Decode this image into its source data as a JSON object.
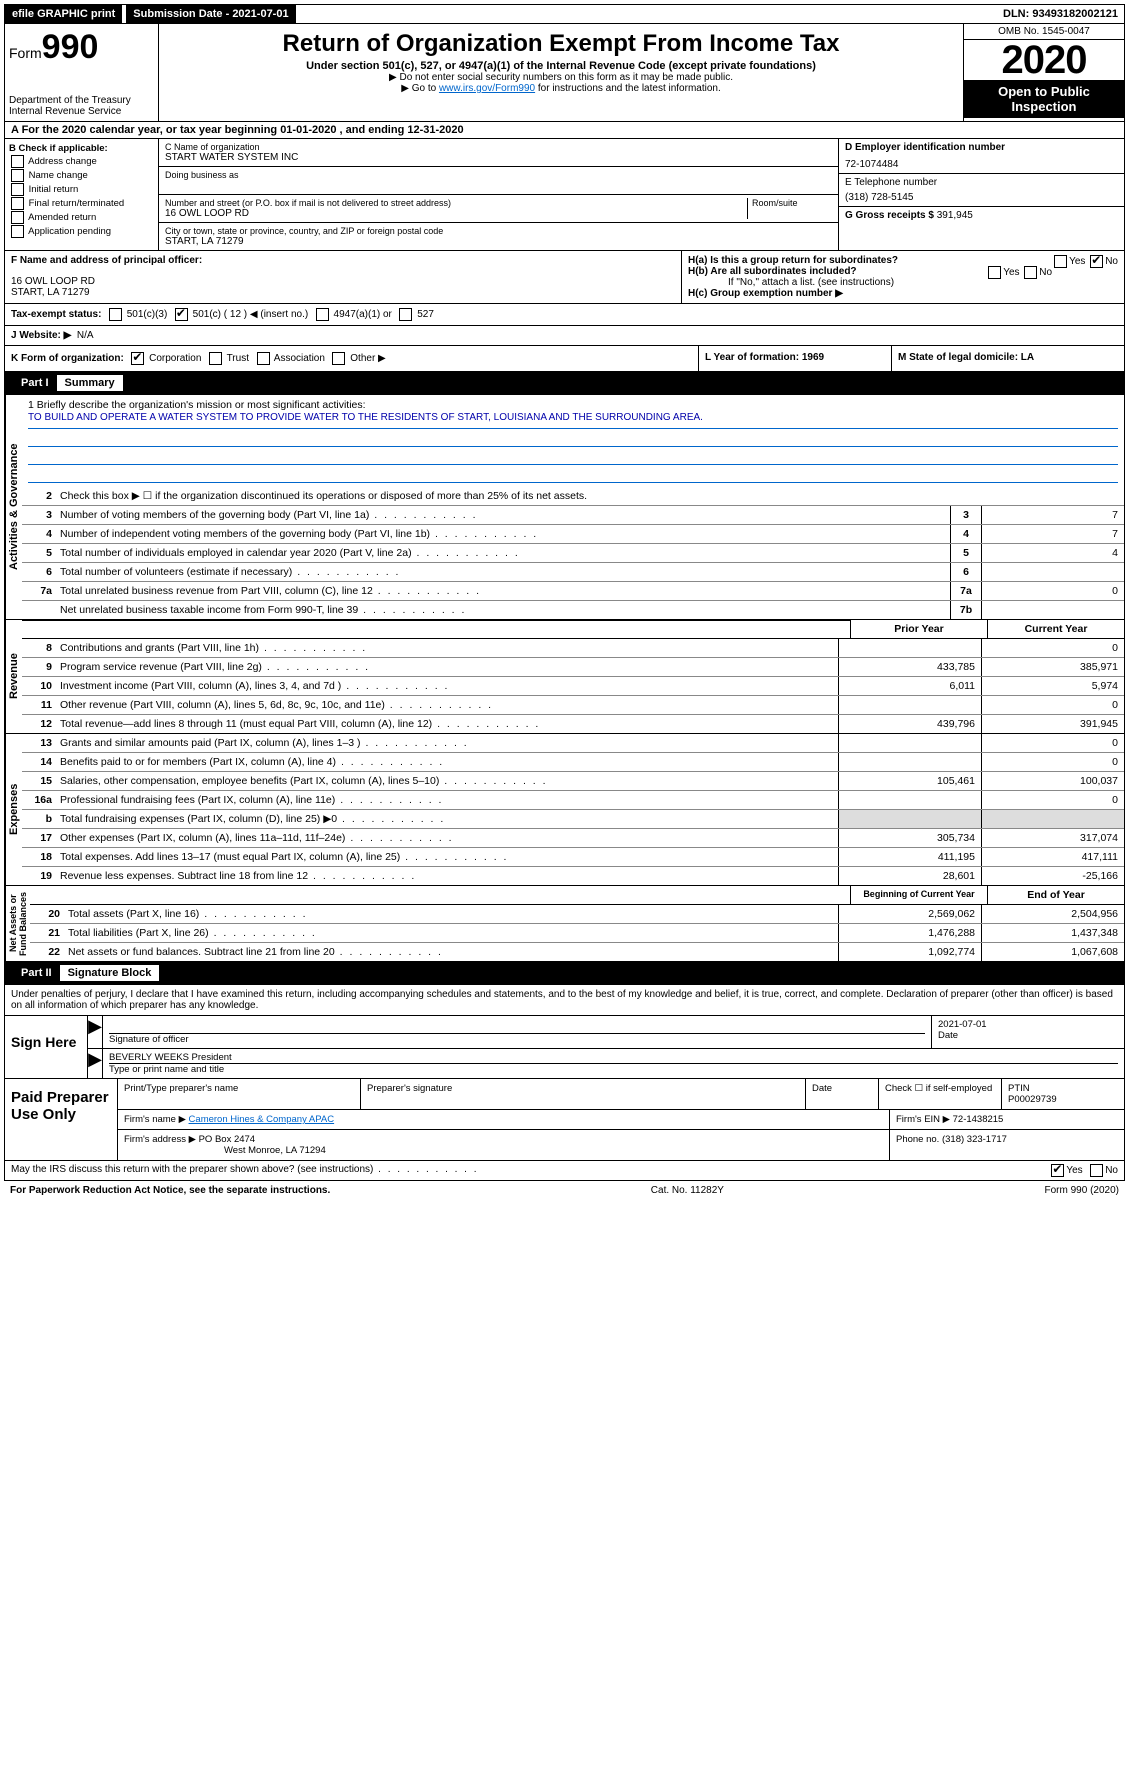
{
  "topbar": {
    "efile": "efile GRAPHIC print",
    "submission_label": "Submission Date - 2021-07-01",
    "dln": "DLN: 93493182002121"
  },
  "header": {
    "form_prefix": "Form",
    "form_number": "990",
    "dept": "Department of the Treasury\nInternal Revenue Service",
    "title": "Return of Organization Exempt From Income Tax",
    "subtitle": "Under section 501(c), 527, or 4947(a)(1) of the Internal Revenue Code (except private foundations)",
    "note1": "▶ Do not enter social security numbers on this form as it may be made public.",
    "note2_pre": "▶ Go to ",
    "note2_link": "www.irs.gov/Form990",
    "note2_post": " for instructions and the latest information.",
    "omb": "OMB No. 1545-0047",
    "year": "2020",
    "open": "Open to Public Inspection"
  },
  "period": {
    "text": "A For the 2020 calendar year, or tax year beginning 01-01-2020   , and ending 12-31-2020"
  },
  "boxB": {
    "title": "B Check if applicable:",
    "opts": [
      "Address change",
      "Name change",
      "Initial return",
      "Final return/terminated",
      "Amended return",
      "Application pending"
    ]
  },
  "boxC": {
    "name_label": "C Name of organization",
    "name": "START WATER SYSTEM INC",
    "dba_label": "Doing business as",
    "addr_label": "Number and street (or P.O. box if mail is not delivered to street address)",
    "room_label": "Room/suite",
    "addr": "16 OWL LOOP RD",
    "city_label": "City or town, state or province, country, and ZIP or foreign postal code",
    "city": "START, LA  71279"
  },
  "boxD": {
    "label": "D Employer identification number",
    "ein": "72-1074484",
    "e_label": "E Telephone number",
    "phone": "(318) 728-5145",
    "g_label": "G Gross receipts $",
    "gross": "391,945"
  },
  "boxF": {
    "label": "F  Name and address of principal officer:",
    "addr1": "16 OWL LOOP RD",
    "addr2": "START, LA  71279"
  },
  "boxH": {
    "a": "H(a)  Is this a group return for subordinates?",
    "b": "H(b)  Are all subordinates included?",
    "b_note": "If \"No,\" attach a list. (see instructions)",
    "c": "H(c)  Group exemption number ▶",
    "yes": "Yes",
    "no": "No"
  },
  "taxstatus": {
    "label": "Tax-exempt status:",
    "o1": "501(c)(3)",
    "o2": "501(c) ( 12 ) ◀ (insert no.)",
    "o3": "4947(a)(1) or",
    "o4": "527"
  },
  "website": {
    "label": "J   Website: ▶",
    "value": "N/A"
  },
  "rowK": {
    "k": "K Form of organization:",
    "corp": "Corporation",
    "trust": "Trust",
    "assoc": "Association",
    "other": "Other ▶",
    "l": "L Year of formation: 1969",
    "m": "M State of legal domicile: LA"
  },
  "part1": {
    "num": "Part I",
    "title": "Summary"
  },
  "summary": {
    "l1_label": "1  Briefly describe the organization's mission or most significant activities:",
    "mission": "TO BUILD AND OPERATE A WATER SYSTEM TO PROVIDE WATER TO THE RESIDENTS OF START, LOUISIANA AND THE SURROUNDING AREA.",
    "l2": "Check this box ▶ ☐  if the organization discontinued its operations or disposed of more than 25% of its net assets.",
    "lines_gov": [
      {
        "n": "3",
        "d": "Number of voting members of the governing body (Part VI, line 1a)",
        "box": "3",
        "v": "7"
      },
      {
        "n": "4",
        "d": "Number of independent voting members of the governing body (Part VI, line 1b)",
        "box": "4",
        "v": "7"
      },
      {
        "n": "5",
        "d": "Total number of individuals employed in calendar year 2020 (Part V, line 2a)",
        "box": "5",
        "v": "4"
      },
      {
        "n": "6",
        "d": "Total number of volunteers (estimate if necessary)",
        "box": "6",
        "v": ""
      },
      {
        "n": "7a",
        "d": "Total unrelated business revenue from Part VIII, column (C), line 12",
        "box": "7a",
        "v": "0"
      },
      {
        "n": "",
        "d": "Net unrelated business taxable income from Form 990-T, line 39",
        "box": "7b",
        "v": ""
      }
    ],
    "hdr_prior": "Prior Year",
    "hdr_curr": "Current Year",
    "rev": [
      {
        "n": "8",
        "d": "Contributions and grants (Part VIII, line 1h)",
        "p": "",
        "c": "0"
      },
      {
        "n": "9",
        "d": "Program service revenue (Part VIII, line 2g)",
        "p": "433,785",
        "c": "385,971"
      },
      {
        "n": "10",
        "d": "Investment income (Part VIII, column (A), lines 3, 4, and 7d )",
        "p": "6,011",
        "c": "5,974"
      },
      {
        "n": "11",
        "d": "Other revenue (Part VIII, column (A), lines 5, 6d, 8c, 9c, 10c, and 11e)",
        "p": "",
        "c": "0"
      },
      {
        "n": "12",
        "d": "Total revenue—add lines 8 through 11 (must equal Part VIII, column (A), line 12)",
        "p": "439,796",
        "c": "391,945"
      }
    ],
    "exp": [
      {
        "n": "13",
        "d": "Grants and similar amounts paid (Part IX, column (A), lines 1–3 )",
        "p": "",
        "c": "0"
      },
      {
        "n": "14",
        "d": "Benefits paid to or for members (Part IX, column (A), line 4)",
        "p": "",
        "c": "0"
      },
      {
        "n": "15",
        "d": "Salaries, other compensation, employee benefits (Part IX, column (A), lines 5–10)",
        "p": "105,461",
        "c": "100,037"
      },
      {
        "n": "16a",
        "d": "Professional fundraising fees (Part IX, column (A), line 11e)",
        "p": "",
        "c": "0"
      },
      {
        "n": "b",
        "d": "Total fundraising expenses (Part IX, column (D), line 25) ▶0",
        "p": "—gray—",
        "c": "—gray—"
      },
      {
        "n": "17",
        "d": "Other expenses (Part IX, column (A), lines 11a–11d, 11f–24e)",
        "p": "305,734",
        "c": "317,074"
      },
      {
        "n": "18",
        "d": "Total expenses. Add lines 13–17 (must equal Part IX, column (A), line 25)",
        "p": "411,195",
        "c": "417,111"
      },
      {
        "n": "19",
        "d": "Revenue less expenses. Subtract line 18 from line 12",
        "p": "28,601",
        "c": "-25,166"
      }
    ],
    "hdr_beg": "Beginning of Current Year",
    "hdr_end": "End of Year",
    "net": [
      {
        "n": "20",
        "d": "Total assets (Part X, line 16)",
        "p": "2,569,062",
        "c": "2,504,956"
      },
      {
        "n": "21",
        "d": "Total liabilities (Part X, line 26)",
        "p": "1,476,288",
        "c": "1,437,348"
      },
      {
        "n": "22",
        "d": "Net assets or fund balances. Subtract line 21 from line 20",
        "p": "1,092,774",
        "c": "1,067,608"
      }
    ]
  },
  "part2": {
    "num": "Part II",
    "title": "Signature Block"
  },
  "sig": {
    "intro": "Under penalties of perjury, I declare that I have examined this return, including accompanying schedules and statements, and to the best of my knowledge and belief, it is true, correct, and complete. Declaration of preparer (other than officer) is based on all information of which preparer has any knowledge.",
    "sign_here": "Sign Here",
    "sig_officer": "Signature of officer",
    "date": "2021-07-01",
    "date_label": "Date",
    "name_title": "BEVERLY WEEKS President",
    "name_label": "Type or print name and title"
  },
  "paid": {
    "title": "Paid Preparer Use Only",
    "c1": "Print/Type preparer's name",
    "c2": "Preparer's signature",
    "c3": "Date",
    "c4_a": "Check ☐ if self-employed",
    "c5": "PTIN",
    "ptin": "P00029739",
    "firm_label": "Firm's name   ▶",
    "firm": "Cameron Hines & Company APAC",
    "ein_label": "Firm's EIN ▶",
    "ein": "72-1438215",
    "addr_label": "Firm's address ▶",
    "addr1": "PO Box 2474",
    "addr2": "West Monroe, LA  71294",
    "phone_label": "Phone no.",
    "phone": "(318) 323-1717"
  },
  "footer": {
    "q": "May the IRS discuss this return with the preparer shown above? (see instructions)",
    "yes": "Yes",
    "no": "No",
    "pra": "For Paperwork Reduction Act Notice, see the separate instructions.",
    "cat": "Cat. No. 11282Y",
    "form": "Form 990 (2020)"
  }
}
